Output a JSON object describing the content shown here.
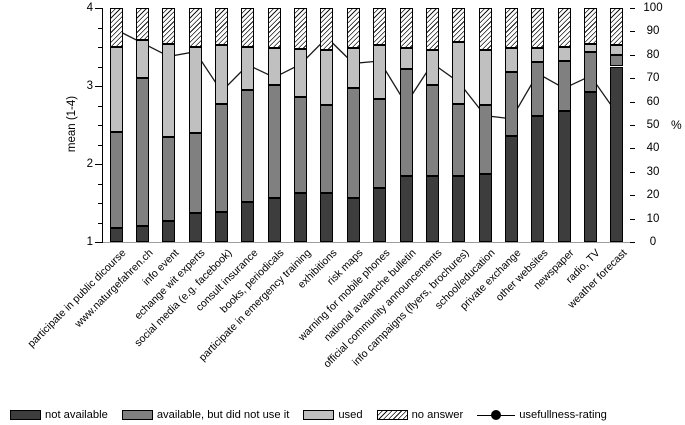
{
  "chart_data": {
    "type": "bar",
    "subtype": "stacked-100pct-with-line-overlay",
    "grid": false,
    "legend_position": "bottom",
    "categories": [
      "participate in public dicourse",
      "www.naturgefahren.ch",
      "info event",
      "echange wit experts",
      "social media (e.g. facebook)",
      "consult insurance",
      "books, periodicals",
      "participate in emergency training",
      "exhibitions",
      "risk maps",
      "warning for mobile phones",
      "national avalanche bulletin",
      "official community announcements",
      "info campaigns (flyers, brochures)",
      "school/education",
      "private exchange",
      "other websites",
      "newspaper",
      "radio, TV",
      "weather forecast"
    ],
    "series": [
      {
        "name": "not available",
        "color": "#3d3d3d",
        "unit": "%",
        "values": [
          6,
          7,
          9,
          12.5,
          13,
          17,
          19,
          21,
          21,
          19,
          23,
          28,
          28,
          28,
          29,
          45.5,
          54,
          56,
          64,
          75
        ]
      },
      {
        "name": "available, but did not use it",
        "color": "#808080",
        "unit": "%",
        "values": [
          41,
          63,
          36,
          34,
          46,
          48,
          48,
          41,
          37.5,
          47,
          38,
          46,
          39,
          31,
          29.5,
          27,
          23,
          21.5,
          17,
          5
        ]
      },
      {
        "name": "used",
        "color": "#c0c0c0",
        "unit": "%",
        "values": [
          36.5,
          16.5,
          39.5,
          37,
          25,
          18.5,
          16,
          20.5,
          23.5,
          17,
          23,
          9,
          15,
          26.5,
          23.5,
          10.5,
          6,
          6,
          3.5,
          4
        ]
      },
      {
        "name": "no answer",
        "color": "hatch-diagonal",
        "unit": "%",
        "values": [
          16.5,
          13.5,
          15.5,
          16.5,
          16,
          16.5,
          17,
          17.5,
          18,
          17,
          16,
          17,
          18,
          14.5,
          18,
          17,
          17,
          16.5,
          15.5,
          16
        ]
      }
    ],
    "line": {
      "name": "usefullness-rating",
      "color": "#000000",
      "axis": "left (mean 1-4)",
      "values": [
        3.72,
        3.55,
        3.38,
        3.44,
        2.93,
        3.27,
        3.11,
        3.28,
        3.62,
        3.29,
        3.32,
        2.77,
        3.29,
        3.05,
        2.62,
        2.58,
        3.16,
        2.97,
        3.13,
        2.65
      ]
    },
    "left_axis": {
      "title": "mean (1-4)",
      "min": 1,
      "max": 4,
      "major_ticks": [
        1,
        2,
        3,
        4
      ],
      "minor_step": 0.25
    },
    "right_axis": {
      "title": "%",
      "min": 0,
      "max": 100,
      "tick_step": 10
    }
  },
  "legend": {
    "items": [
      "not available",
      "available, but did not use it",
      "used",
      "no answer",
      "usefullness-rating"
    ]
  }
}
